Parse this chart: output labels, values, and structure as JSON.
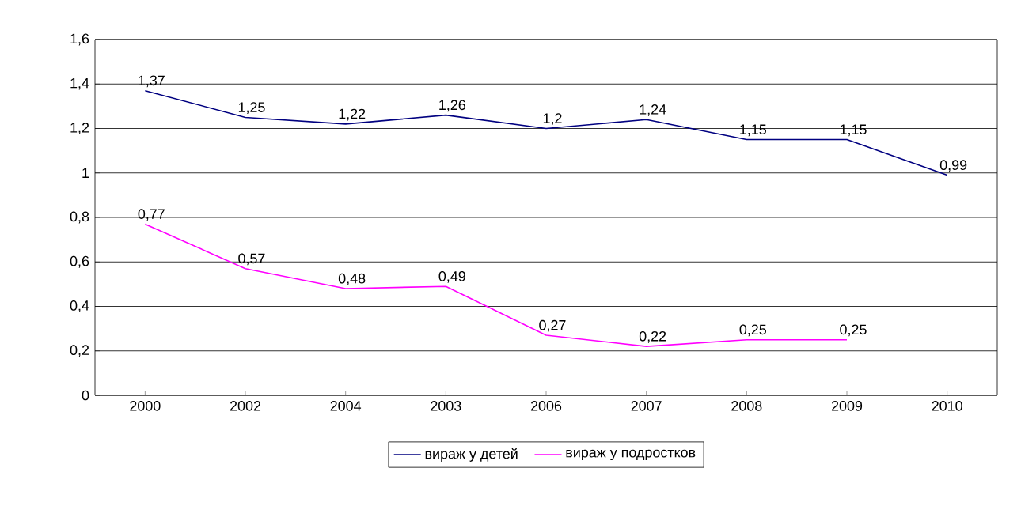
{
  "chart_data": {
    "type": "line",
    "categories": [
      "2000",
      "2002",
      "2004",
      "2003",
      "2006",
      "2007",
      "2008",
      "2009",
      "2010"
    ],
    "series": [
      {
        "name": "вираж у детей",
        "color": "#000080",
        "values": [
          1.37,
          1.25,
          1.22,
          1.26,
          1.2,
          1.24,
          1.15,
          1.15,
          0.99
        ],
        "value_labels": [
          "1,37",
          "1,25",
          "1,22",
          "1,26",
          "1,2",
          "1,24",
          "1,15",
          "1,15",
          "0,99"
        ]
      },
      {
        "name": "вираж у подростков",
        "color": "#ff00ff",
        "values": [
          0.77,
          0.57,
          0.48,
          0.49,
          0.27,
          0.22,
          0.25,
          0.25,
          null
        ],
        "value_labels": [
          "0,77",
          "0,57",
          "0,48",
          "0,49",
          "0,27",
          "0,22",
          "0,25",
          "0,25",
          null
        ]
      }
    ],
    "ylim": [
      0,
      1.6
    ],
    "yticks": [
      0,
      {
        "value": 0.2,
        "label": "0,2"
      },
      {
        "value": 0.4,
        "label": "0,4"
      },
      {
        "value": 0.6,
        "label": "0,6"
      },
      {
        "value": 0.8,
        "label": "0,8"
      },
      1,
      {
        "value": 1.2,
        "label": "1,2"
      },
      {
        "value": 1.4,
        "label": "1,4"
      },
      {
        "value": 1.6,
        "label": "1,6"
      }
    ],
    "grid": "y",
    "legend": "bottom"
  }
}
